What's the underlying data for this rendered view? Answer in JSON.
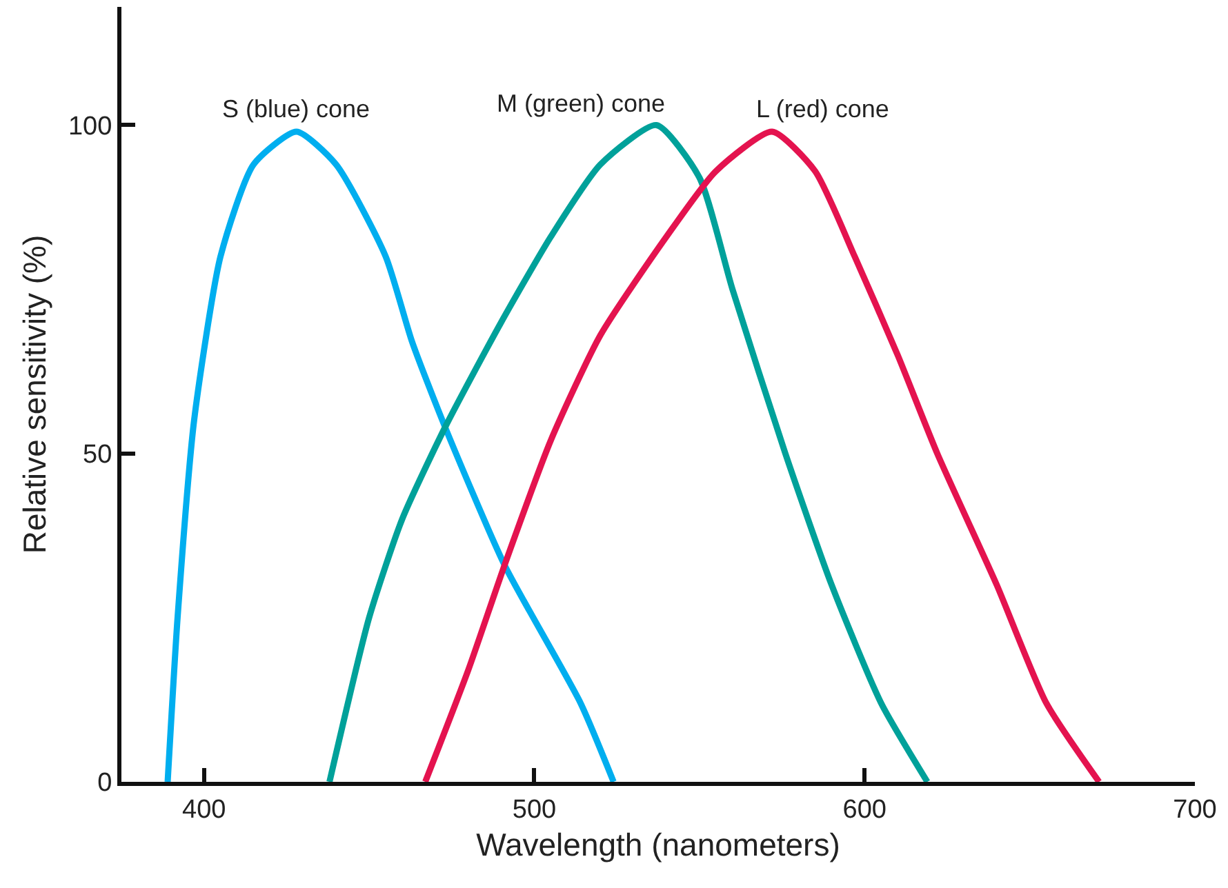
{
  "chart_data": {
    "type": "line",
    "xlabel": "Wavelength (nanometers)",
    "ylabel": "Relative sensitivity (%)",
    "xlim": [
      375,
      700
    ],
    "ylim": [
      0,
      118
    ],
    "xticks": [
      400,
      500,
      600,
      700
    ],
    "yticks": [
      0,
      50,
      100
    ],
    "grid": false,
    "legend": false,
    "marker": "none",
    "line_style": "solid",
    "series": [
      {
        "name": "S (blue) cone",
        "color": "#00aeef",
        "x": [
          389,
          392,
          397,
          405,
          415,
          428,
          440,
          455,
          463,
          473,
          491,
          514,
          524
        ],
        "values": [
          0,
          25,
          55,
          80,
          94,
          99,
          94,
          80,
          67,
          54,
          33,
          12,
          0
        ]
      },
      {
        "name": "M (green) cone",
        "color": "#00a19a",
        "x": [
          438,
          450,
          460,
          473,
          490,
          505,
          520,
          537,
          550,
          560,
          576,
          590,
          605,
          619
        ],
        "values": [
          0,
          25,
          40,
          54,
          70,
          83,
          94,
          100,
          92,
          75,
          50,
          30,
          12,
          0
        ]
      },
      {
        "name": "L (red) cone",
        "color": "#e4134f",
        "x": [
          467,
          480,
          491,
          505,
          520,
          540,
          555,
          572,
          585,
          597,
          610,
          622,
          640,
          655,
          671
        ],
        "values": [
          0,
          17,
          33,
          52,
          68,
          83,
          93,
          99,
          93,
          80,
          65,
          50,
          30,
          12,
          0
        ]
      }
    ]
  }
}
